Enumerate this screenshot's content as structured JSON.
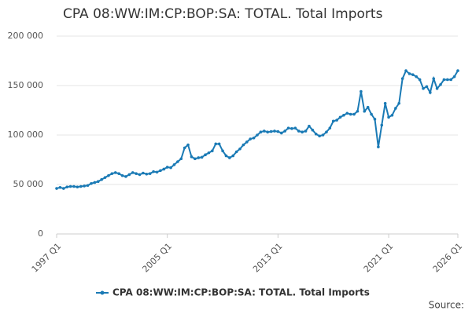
{
  "chart_data": {
    "type": "line",
    "title": "CPA 08:WW:IM:CP:BOP:SA: TOTAL. Total Imports",
    "source": "Source:",
    "categories": [
      "1997 Q1",
      null,
      null,
      null,
      null,
      null,
      null,
      null,
      null,
      null,
      null,
      null,
      null,
      null,
      null,
      null,
      null,
      null,
      null,
      null,
      null,
      null,
      null,
      null,
      null,
      null,
      null,
      null,
      null,
      null,
      null,
      null,
      "2005 Q1",
      null,
      null,
      null,
      null,
      null,
      null,
      null,
      null,
      null,
      null,
      null,
      null,
      null,
      null,
      null,
      null,
      null,
      null,
      null,
      null,
      null,
      null,
      null,
      null,
      null,
      null,
      null,
      null,
      null,
      null,
      null,
      "2013 Q1",
      null,
      null,
      null,
      null,
      null,
      null,
      null,
      null,
      null,
      null,
      null,
      null,
      null,
      null,
      null,
      null,
      null,
      null,
      null,
      null,
      null,
      null,
      null,
      null,
      null,
      null,
      null,
      null,
      null,
      null,
      null,
      "2021 Q1",
      null,
      null,
      null,
      null,
      null,
      null,
      null,
      null,
      null,
      null,
      null,
      null,
      null,
      null,
      null,
      null,
      null,
      null,
      null,
      "2026 Q1"
    ],
    "series": [
      {
        "name": "CPA 08:WW:IM:CP:BOP:SA: TOTAL. Total Imports",
        "color": "#1a7ab5",
        "values": [
          46000,
          47000,
          46000,
          47500,
          48000,
          48000,
          47500,
          48000,
          48500,
          49000,
          51000,
          52000,
          53000,
          55000,
          57000,
          59000,
          61000,
          62000,
          61000,
          59000,
          58000,
          60000,
          62000,
          61000,
          60000,
          61500,
          60500,
          61000,
          63000,
          62500,
          64000,
          65500,
          67500,
          67000,
          70000,
          73000,
          76000,
          87000,
          90000,
          78000,
          76000,
          77000,
          77500,
          80000,
          82000,
          84000,
          91000,
          91000,
          84000,
          79000,
          77000,
          79000,
          83000,
          86000,
          90000,
          93000,
          96000,
          97000,
          100000,
          103000,
          104000,
          103000,
          103500,
          104000,
          103500,
          102000,
          104000,
          107000,
          106500,
          107000,
          104000,
          103000,
          104000,
          109000,
          105000,
          101000,
          99000,
          100000,
          103000,
          107000,
          114000,
          115000,
          118000,
          120000,
          122000,
          121000,
          121000,
          124000,
          144000,
          124000,
          128000,
          121000,
          116000,
          88000,
          110000,
          132000,
          118000,
          120000,
          127000,
          132000,
          157000,
          165000,
          162000,
          161000,
          159000,
          156000,
          147000,
          149000,
          143000,
          157000,
          147000,
          151000,
          156000,
          156000,
          156000,
          159000,
          165000
        ]
      }
    ],
    "ylim": [
      0,
      200000
    ],
    "yticks": [
      0,
      {
        "value": 50000,
        "label": "50 000"
      },
      {
        "value": 100000,
        "label": "100 000"
      },
      {
        "value": 150000,
        "label": "150 000"
      },
      {
        "value": 200000,
        "label": "200 000"
      }
    ],
    "grid": true
  }
}
